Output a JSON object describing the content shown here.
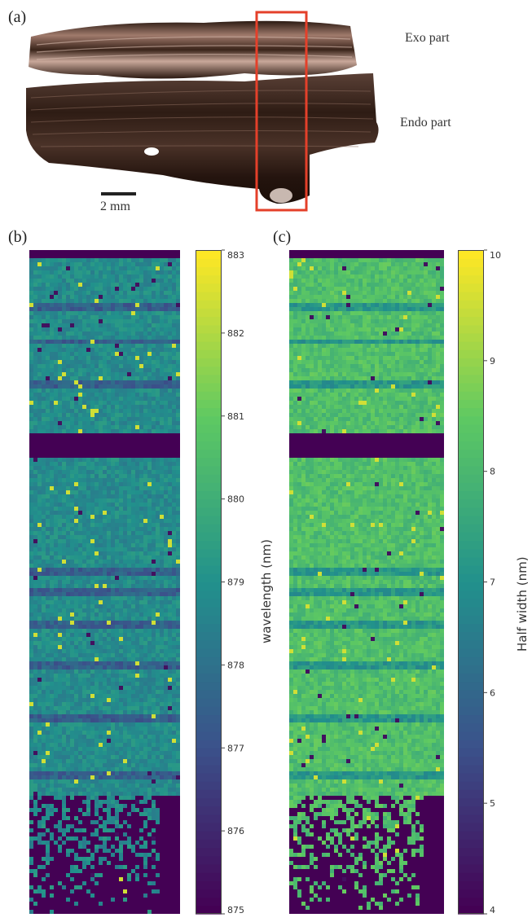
{
  "figure": {
    "panels": [
      {
        "label": "(a)",
        "annotations": [
          "Exo part",
          "Endo part"
        ],
        "scalebar": "2 mm"
      },
      {
        "label": "(b)"
      },
      {
        "label": "(c)"
      }
    ],
    "colors": {
      "map_low": "#440154",
      "map_mid": "#21918c",
      "map_high": "#fde725",
      "box": "#e4402a",
      "sample": "#3a2418"
    }
  },
  "chart_data": [
    {
      "type": "heatmap",
      "title": "",
      "colorbar_label": "wavelength (nm)",
      "range": [
        875,
        883
      ],
      "ticks": [
        875,
        876,
        877,
        878,
        879,
        880,
        881,
        882,
        883
      ],
      "colormap": "viridis"
    },
    {
      "type": "heatmap",
      "title": "",
      "colorbar_label": "Half width (nm)",
      "range": [
        4,
        10
      ],
      "ticks": [
        4,
        5,
        6,
        7,
        8,
        9,
        10
      ],
      "colormap": "viridis"
    }
  ]
}
